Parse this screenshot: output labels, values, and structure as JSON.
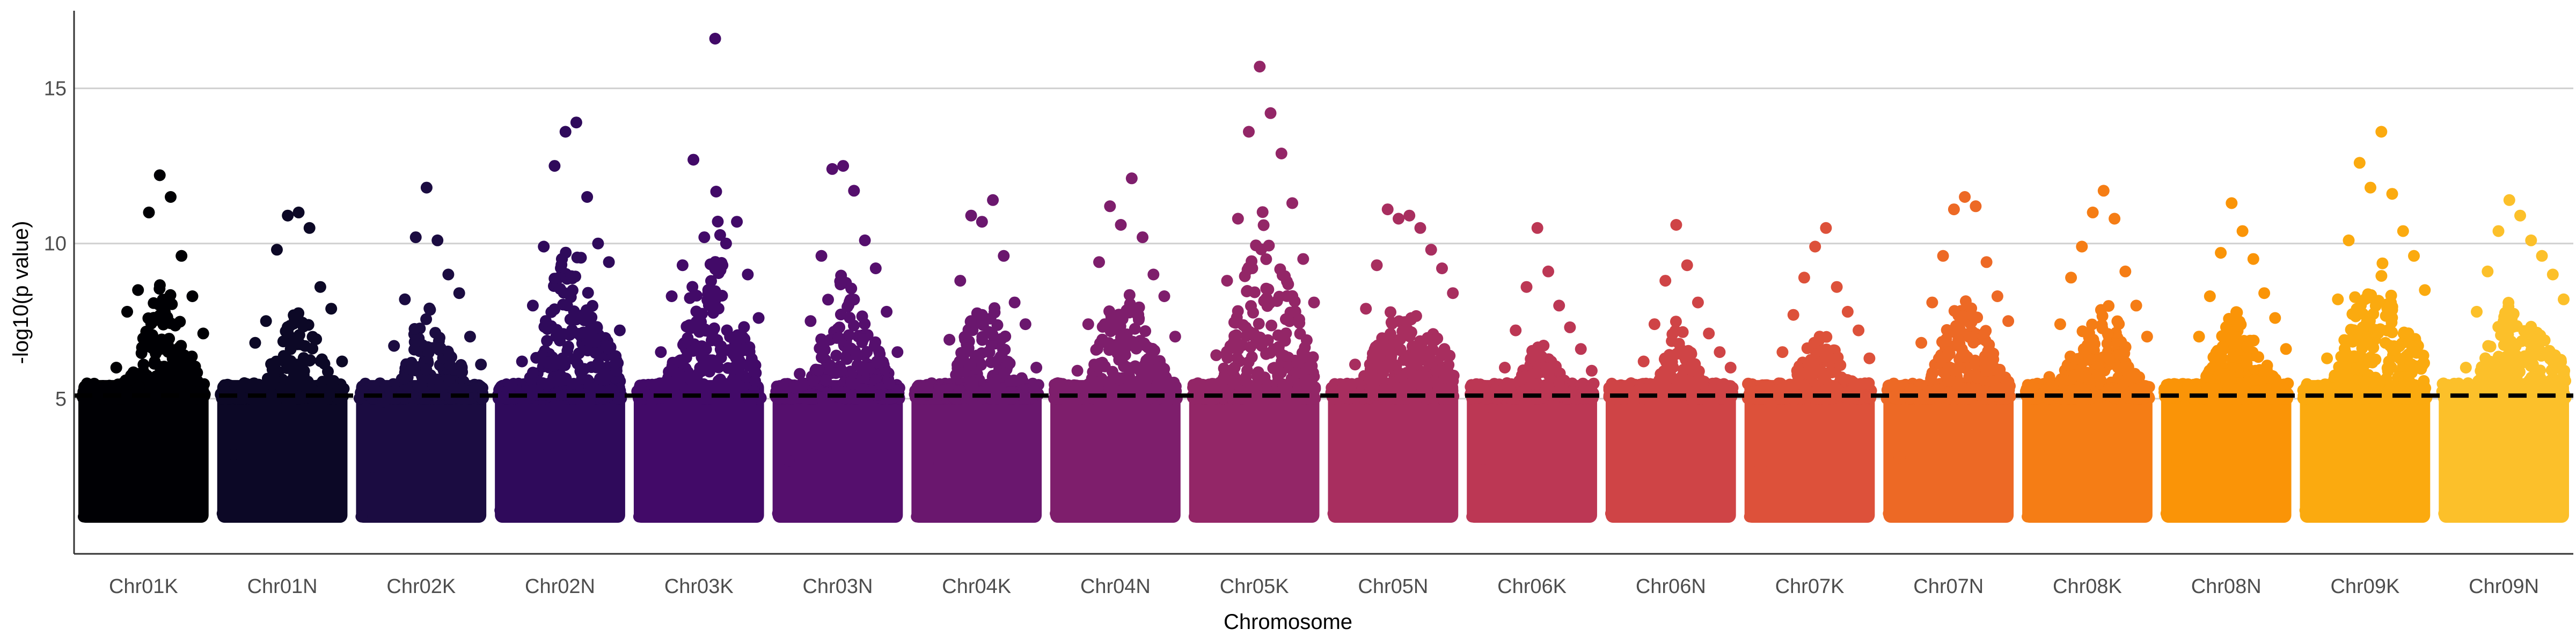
{
  "chart_data": {
    "type": "scatter",
    "title": "",
    "xlabel": "Chromosome",
    "ylabel": "-log10(p value)",
    "ylim": [
      0,
      17.5
    ],
    "yticks": [
      5,
      10,
      15
    ],
    "grid": "horizontal major",
    "threshold": 5.1,
    "categories": [
      "Chr01K",
      "Chr01N",
      "Chr02K",
      "Chr02N",
      "Chr03K",
      "Chr03N",
      "Chr04K",
      "Chr04N",
      "Chr05K",
      "Chr05N",
      "Chr06K",
      "Chr06N",
      "Chr07K",
      "Chr07N",
      "Chr08K",
      "Chr08N",
      "Chr09K",
      "Chr09N"
    ],
    "colors": [
      "#000004",
      "#0c0826",
      "#1b0c41",
      "#2f0a5b",
      "#420a68",
      "#550f6d",
      "#6a176e",
      "#7e1e6c",
      "#932667",
      "#a82e5f",
      "#bc3754",
      "#cf4446",
      "#dd513a",
      "#ed6925",
      "#f57d15",
      "#fa9407",
      "#fbaa0f",
      "#fcc02a"
    ],
    "series": [
      {
        "name": "Chr01K",
        "max": 12.2,
        "values": [
          1.2,
          2.5,
          4.1,
          6.0,
          7.8,
          8.5,
          11.0,
          12.2,
          11.5,
          9.6,
          8.3,
          7.1
        ]
      },
      {
        "name": "Chr01N",
        "max": 11.0,
        "values": [
          1.3,
          3.2,
          5.5,
          6.8,
          7.5,
          9.8,
          10.9,
          11.0,
          10.5,
          8.6,
          7.9,
          6.2
        ]
      },
      {
        "name": "Chr02K",
        "max": 11.8,
        "values": [
          1.2,
          2.8,
          4.9,
          6.7,
          8.2,
          10.2,
          11.8,
          10.1,
          9.0,
          8.4,
          7.0,
          6.1
        ]
      },
      {
        "name": "Chr02N",
        "max": 13.9,
        "values": [
          1.4,
          3.9,
          6.2,
          8.0,
          9.9,
          12.5,
          13.6,
          13.9,
          11.5,
          10.0,
          9.4,
          7.2
        ]
      },
      {
        "name": "Chr03K",
        "max": 16.6,
        "values": [
          1.2,
          3.5,
          6.5,
          8.3,
          9.3,
          12.7,
          10.2,
          16.6,
          10.0,
          10.7,
          9.0,
          7.6
        ]
      },
      {
        "name": "Chr03N",
        "max": 12.5,
        "values": [
          1.3,
          3.0,
          5.8,
          7.5,
          9.6,
          12.4,
          12.5,
          11.7,
          10.1,
          9.2,
          7.8,
          6.5
        ]
      },
      {
        "name": "Chr04K",
        "max": 11.4,
        "values": [
          1.2,
          2.9,
          5.1,
          6.9,
          8.8,
          10.9,
          10.7,
          11.4,
          9.6,
          8.1,
          7.4,
          6.0
        ]
      },
      {
        "name": "Chr04N",
        "max": 12.1,
        "values": [
          1.3,
          3.4,
          5.9,
          7.4,
          9.4,
          11.2,
          10.6,
          12.1,
          10.2,
          9.0,
          8.3,
          7.0
        ]
      },
      {
        "name": "Chr05K",
        "max": 15.7,
        "values": [
          1.2,
          3.8,
          6.4,
          8.8,
          10.8,
          13.6,
          15.7,
          14.2,
          12.9,
          11.3,
          9.5,
          8.1
        ]
      },
      {
        "name": "Chr05N",
        "max": 11.1,
        "values": [
          1.3,
          3.6,
          6.1,
          7.9,
          9.3,
          11.1,
          10.8,
          10.9,
          10.5,
          9.8,
          9.2,
          8.4
        ]
      },
      {
        "name": "Chr06K",
        "max": 10.5,
        "values": [
          1.2,
          2.7,
          4.5,
          6.0,
          7.2,
          8.6,
          10.5,
          9.1,
          8.0,
          7.3,
          6.6,
          5.9
        ]
      },
      {
        "name": "Chr06N",
        "max": 10.6,
        "values": [
          1.3,
          2.6,
          4.7,
          6.2,
          7.4,
          8.8,
          10.6,
          9.3,
          8.1,
          7.1,
          6.5,
          6.0
        ]
      },
      {
        "name": "Chr07K",
        "max": 10.5,
        "values": [
          1.2,
          2.8,
          4.8,
          6.5,
          7.7,
          8.9,
          9.9,
          10.5,
          8.6,
          7.8,
          7.2,
          6.3
        ]
      },
      {
        "name": "Chr07N",
        "max": 11.5,
        "values": [
          1.3,
          3.1,
          5.3,
          6.8,
          8.1,
          9.6,
          11.1,
          11.5,
          11.2,
          9.4,
          8.3,
          7.5
        ]
      },
      {
        "name": "Chr08K",
        "max": 11.7,
        "values": [
          1.2,
          3.3,
          5.7,
          7.4,
          8.9,
          9.9,
          11.0,
          11.7,
          10.8,
          9.1,
          8.0,
          7.0
        ]
      },
      {
        "name": "Chr08N",
        "max": 11.3,
        "values": [
          1.3,
          3.0,
          5.4,
          7.0,
          8.3,
          9.7,
          11.3,
          10.4,
          9.5,
          8.4,
          7.6,
          6.6
        ]
      },
      {
        "name": "Chr09K",
        "max": 13.6,
        "values": [
          1.4,
          3.9,
          6.3,
          8.2,
          10.1,
          12.6,
          11.8,
          13.6,
          11.6,
          10.4,
          9.6,
          8.5
        ]
      },
      {
        "name": "Chr09N",
        "max": 11.4,
        "values": [
          1.3,
          3.5,
          6.0,
          7.8,
          9.1,
          10.4,
          11.4,
          10.9,
          10.1,
          9.6,
          9.0,
          8.2
        ]
      }
    ]
  }
}
